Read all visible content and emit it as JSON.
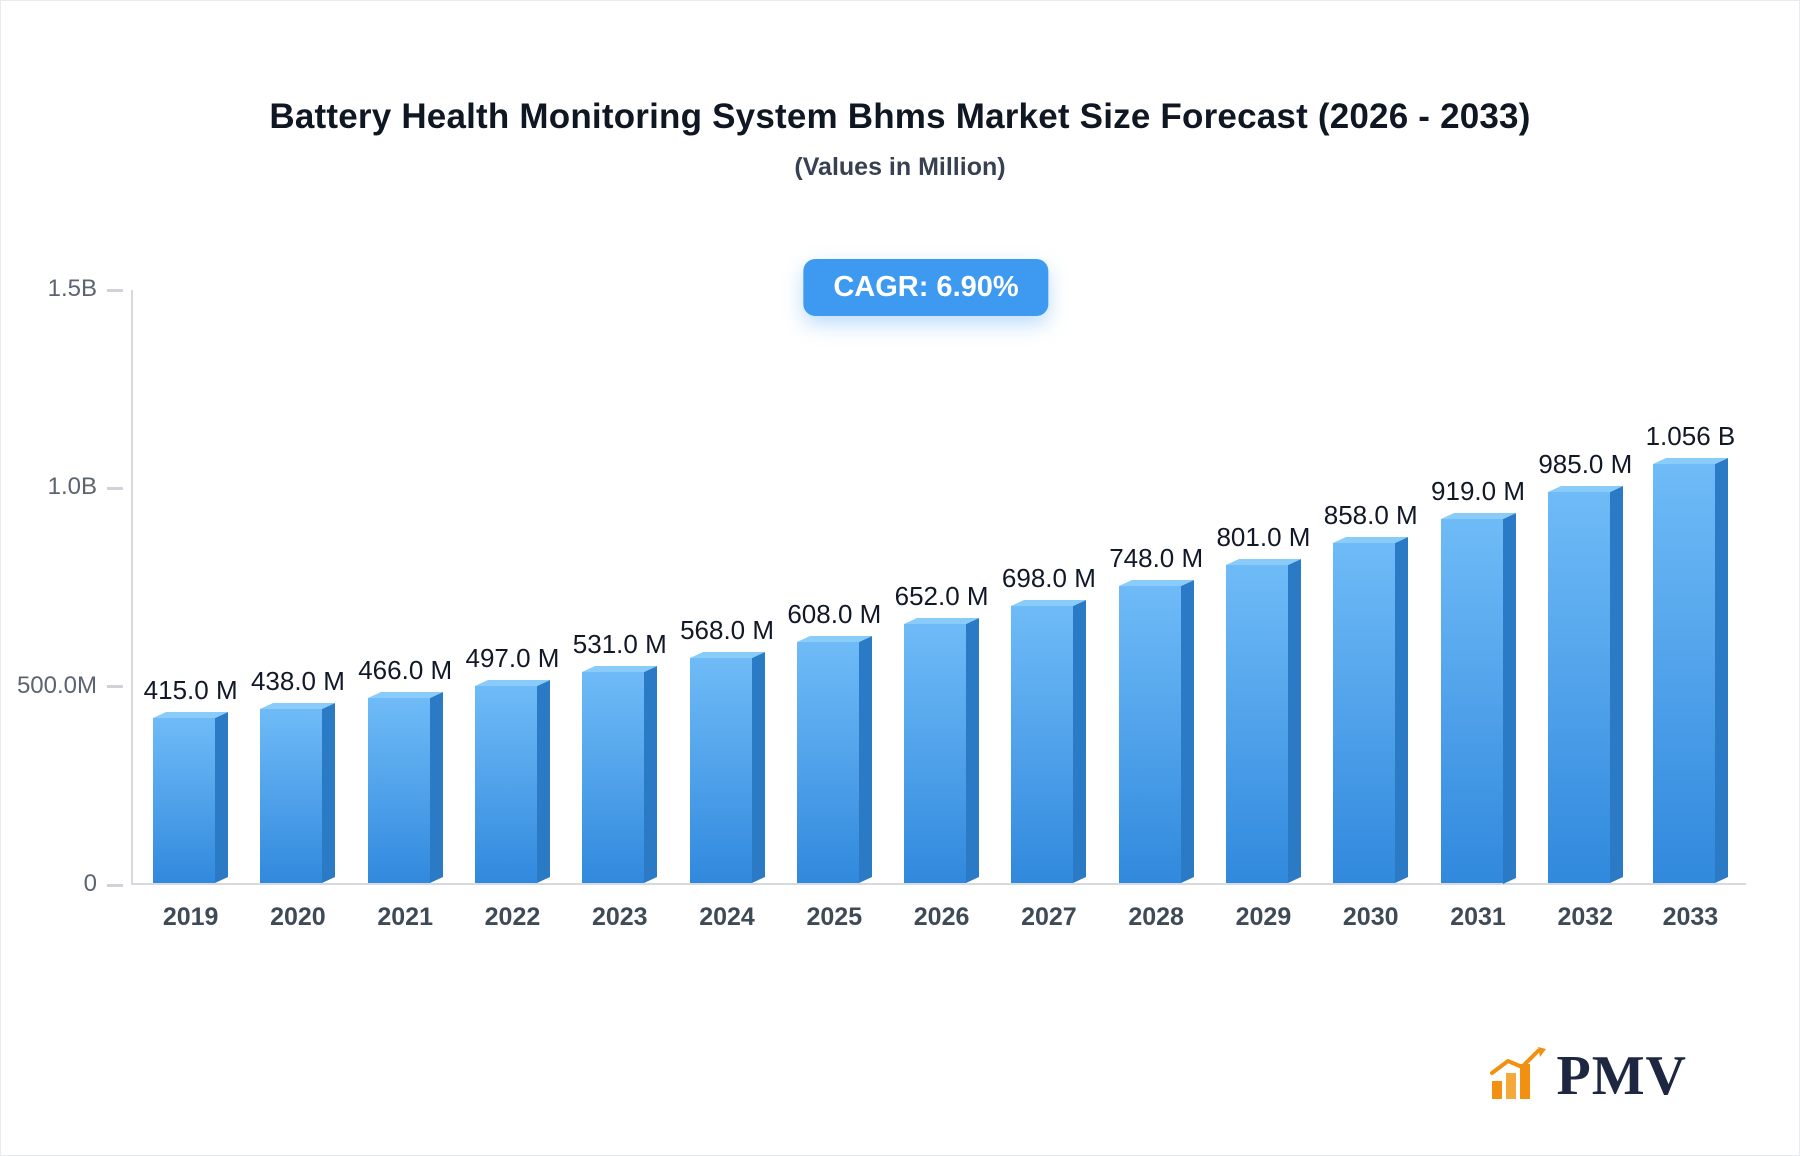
{
  "badge": {
    "label": "CAGR: 6.90%",
    "color": "#3d9af0"
  },
  "branding": {
    "logo_text": "PMV",
    "logo_icon_color": "#f29111"
  },
  "chart_data": {
    "type": "bar",
    "title": "Battery Health Monitoring System Bhms Market Size Forecast (2026 - 2033)",
    "subtitle": "(Values in Million)",
    "categories": [
      "2019",
      "2020",
      "2021",
      "2022",
      "2023",
      "2024",
      "2025",
      "2026",
      "2027",
      "2028",
      "2029",
      "2030",
      "2031",
      "2032",
      "2033"
    ],
    "values": [
      415,
      438,
      466,
      497,
      531,
      568,
      608,
      652,
      698,
      748,
      801,
      858,
      919,
      985,
      1056
    ],
    "value_labels": [
      "415.0 M",
      "438.0 M",
      "466.0 M",
      "497.0 M",
      "531.0 M",
      "568.0 M",
      "608.0 M",
      "652.0 M",
      "698.0 M",
      "748.0 M",
      "801.0 M",
      "858.0 M",
      "919.0 M",
      "985.0 M",
      "1.056 B"
    ],
    "xlabel": "",
    "ylabel": "",
    "ylim": [
      0,
      1500
    ],
    "yticks": [
      {
        "value": 0,
        "label": "0"
      },
      {
        "value": 500,
        "label": "500.0M"
      },
      {
        "value": 1000,
        "label": "1.0B"
      },
      {
        "value": 1500,
        "label": "1.5B"
      }
    ],
    "grid": false,
    "legend_position": "none",
    "bar_colors": {
      "front_top": "#6fbbf7",
      "front_bottom": "#3189dd",
      "side": "#2b7ac6",
      "top": "#8accf9"
    }
  }
}
